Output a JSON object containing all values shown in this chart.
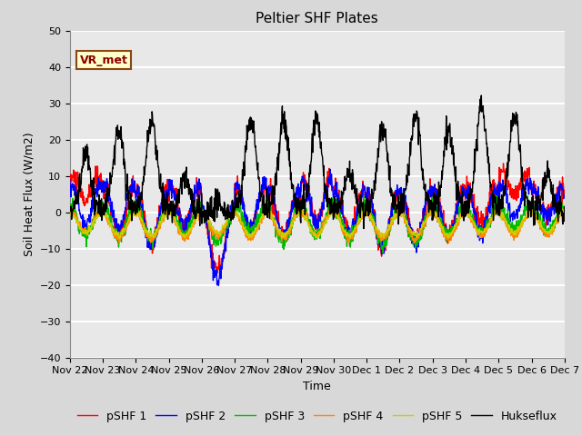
{
  "title": "Peltier SHF Plates",
  "xlabel": "Time",
  "ylabel": "Soil Heat Flux (W/m2)",
  "ylim": [
    -40,
    50
  ],
  "xtick_labels": [
    "Nov 22",
    "Nov 23",
    "Nov 24",
    "Nov 25",
    "Nov 26",
    "Nov 27",
    "Nov 28",
    "Nov 29",
    "Nov 30",
    "Dec 1",
    "Dec 2",
    "Dec 3",
    "Dec 4",
    "Dec 5",
    "Dec 6",
    "Dec 7"
  ],
  "series_colors": [
    "#ff0000",
    "#0000ff",
    "#00bb00",
    "#ff8800",
    "#cccc00",
    "#000000"
  ],
  "series_names": [
    "pSHF 1",
    "pSHF 2",
    "pSHF 3",
    "pSHF 4",
    "pSHF 5",
    "Hukseflux"
  ],
  "annotation_text": "VR_met",
  "bg_color": "#d8d8d8",
  "plot_bg_color": "#e8e8e8",
  "title_fontsize": 11,
  "label_fontsize": 9,
  "tick_fontsize": 8,
  "legend_fontsize": 9,
  "grid_color": "#ffffff",
  "line_width": 1.0,
  "n_days": 15,
  "pts_per_day": 96
}
